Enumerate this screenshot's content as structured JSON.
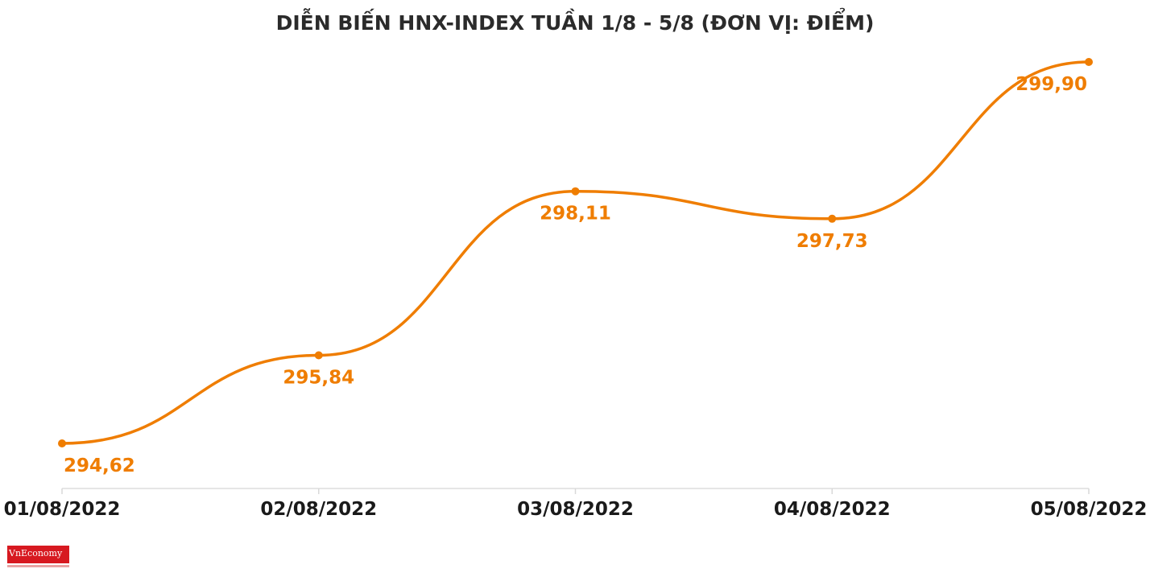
{
  "logo_text": "VnEconomy",
  "colors": {
    "line": "#ef7d00",
    "axis": "#e6e6e6",
    "text": "#1a1a1a",
    "logo": "#d71920"
  },
  "chart_data": {
    "type": "line",
    "title": "DIỄN BIẾN HNX-INDEX TUẦN 1/8 - 5/8 (ĐƠN VỊ: ĐIỂM)",
    "xlabel": "",
    "ylabel": "",
    "categories": [
      "01/08/2022",
      "02/08/2022",
      "03/08/2022",
      "04/08/2022",
      "05/08/2022"
    ],
    "series": [
      {
        "values": [
          294.62,
          295.84,
          298.11,
          297.73,
          299.9
        ],
        "labels": [
          "294,62",
          "295,84",
          "298,11",
          "297,73",
          "299,90"
        ]
      }
    ],
    "ylim": [
      294.0,
      300.0
    ],
    "grid": false,
    "legend": "none",
    "smooth": true
  }
}
